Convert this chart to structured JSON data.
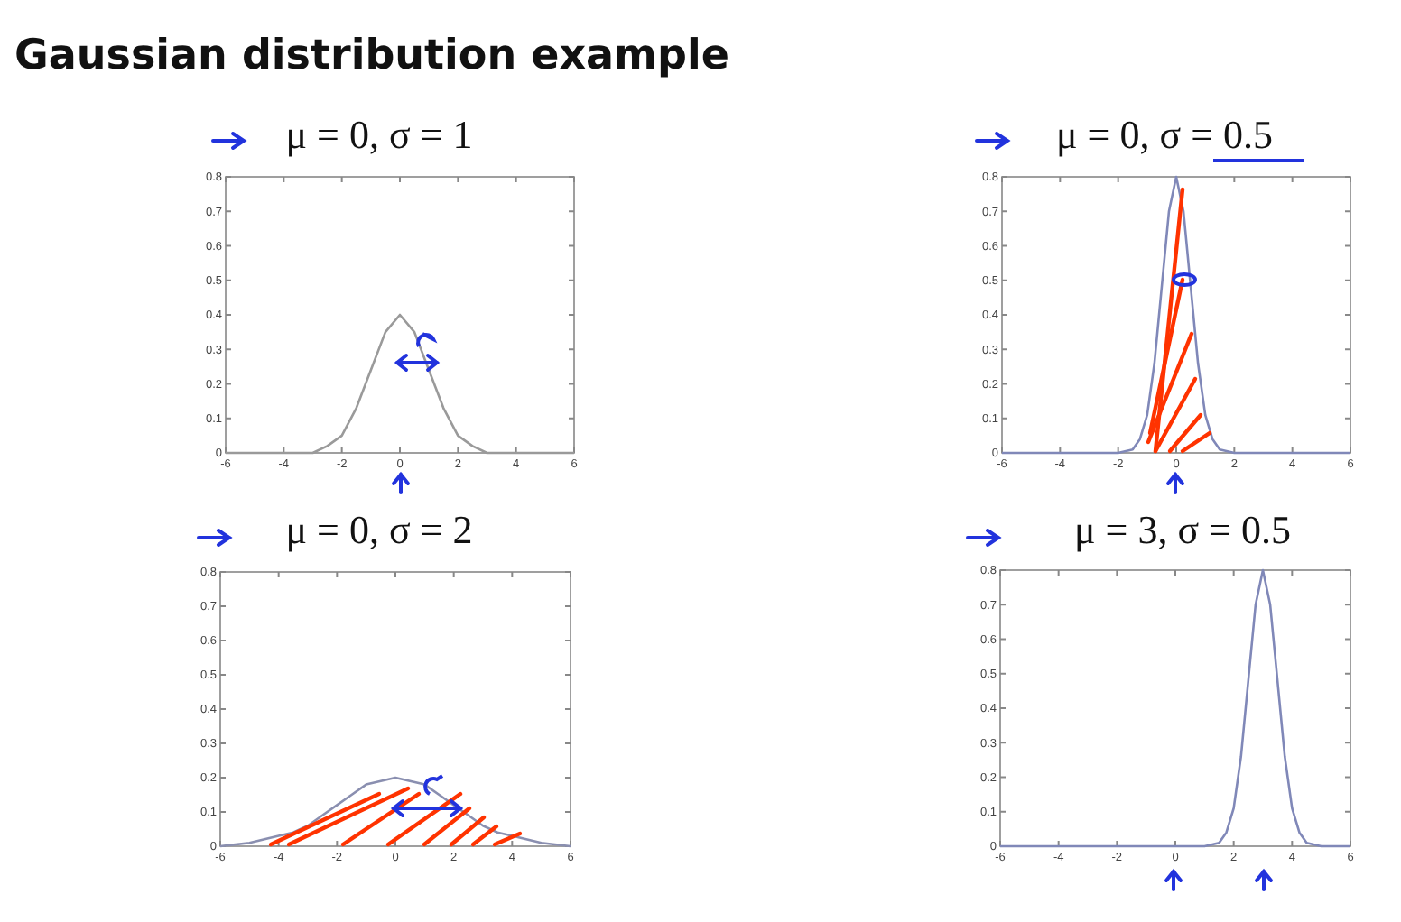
{
  "chart_data": [
    {
      "type": "other",
      "title": "Gaussian distribution example"
    },
    {
      "type": "line",
      "title": "μ = 0, σ = 1",
      "x": [
        -6,
        -5,
        -4,
        -3.5,
        -3,
        -2.5,
        -2,
        -1.5,
        -1,
        -0.5,
        0,
        0.5,
        1,
        1.5,
        2,
        2.5,
        3,
        3.5,
        4,
        5,
        6
      ],
      "series": [
        {
          "color": "#9a9a9a",
          "values": [
            0,
            0,
            0,
            0,
            0,
            0.02,
            0.05,
            0.13,
            0.24,
            0.35,
            0.4,
            0.35,
            0.24,
            0.13,
            0.05,
            0.02,
            0,
            0,
            0,
            0,
            0
          ]
        }
      ],
      "xlim": [
        -6,
        6
      ],
      "ylim": [
        0,
        0.8
      ],
      "xticks": [
        -6,
        -4,
        -2,
        0,
        2,
        4,
        6
      ],
      "yticks": [
        0,
        0.1,
        0.2,
        0.3,
        0.4,
        0.5,
        0.6,
        0.7,
        0.8
      ],
      "grid": false
    },
    {
      "type": "line",
      "title": "μ = 0, σ = 0.5",
      "x": [
        -6,
        -4,
        -2,
        -1.5,
        -1.25,
        -1,
        -0.75,
        -0.5,
        -0.25,
        0,
        0.25,
        0.5,
        0.75,
        1,
        1.25,
        1.5,
        2,
        4,
        6
      ],
      "series": [
        {
          "color": "#8088b8",
          "values": [
            0,
            0,
            0,
            0.01,
            0.04,
            0.11,
            0.26,
            0.48,
            0.7,
            0.8,
            0.7,
            0.48,
            0.26,
            0.11,
            0.04,
            0.01,
            0,
            0,
            0
          ]
        }
      ],
      "xlim": [
        -6,
        6
      ],
      "ylim": [
        0,
        0.8
      ],
      "xticks": [
        -6,
        -4,
        -2,
        0,
        2,
        4,
        6
      ],
      "yticks": [
        0,
        0.1,
        0.2,
        0.3,
        0.4,
        0.5,
        0.6,
        0.7,
        0.8
      ],
      "grid": false
    },
    {
      "type": "line",
      "title": "μ = 0, σ = 2",
      "x": [
        -6,
        -5,
        -4,
        -3.5,
        -3,
        -2.5,
        -2,
        -1.5,
        -1,
        -0.5,
        0,
        0.5,
        1,
        1.5,
        2,
        2.5,
        3,
        3.5,
        4,
        5,
        6
      ],
      "series": [
        {
          "color": "#8a8fb0",
          "values": [
            0,
            0.01,
            0.03,
            0.04,
            0.06,
            0.09,
            0.12,
            0.15,
            0.18,
            0.19,
            0.2,
            0.19,
            0.18,
            0.15,
            0.12,
            0.09,
            0.06,
            0.04,
            0.03,
            0.01,
            0
          ]
        }
      ],
      "xlim": [
        -6,
        6
      ],
      "ylim": [
        0,
        0.8
      ],
      "xticks": [
        -6,
        -4,
        -2,
        0,
        2,
        4,
        6
      ],
      "yticks": [
        0,
        0.1,
        0.2,
        0.3,
        0.4,
        0.5,
        0.6,
        0.7,
        0.8
      ],
      "grid": false
    },
    {
      "type": "line",
      "title": "μ = 3, σ = 0.5",
      "x": [
        -6,
        -2,
        0,
        1,
        1.5,
        1.75,
        2,
        2.25,
        2.5,
        2.75,
        3,
        3.25,
        3.5,
        3.75,
        4,
        4.25,
        4.5,
        5,
        6
      ],
      "series": [
        {
          "color": "#8088b8",
          "values": [
            0,
            0,
            0,
            0,
            0.01,
            0.04,
            0.11,
            0.26,
            0.48,
            0.7,
            0.8,
            0.7,
            0.48,
            0.26,
            0.11,
            0.04,
            0.01,
            0,
            0
          ]
        }
      ],
      "xlim": [
        -6,
        6
      ],
      "ylim": [
        0,
        0.8
      ],
      "xticks": [
        -6,
        -4,
        -2,
        0,
        2,
        4,
        6
      ],
      "yticks": [
        0,
        0.1,
        0.2,
        0.3,
        0.4,
        0.5,
        0.6,
        0.7,
        0.8
      ],
      "grid": false
    }
  ]
}
